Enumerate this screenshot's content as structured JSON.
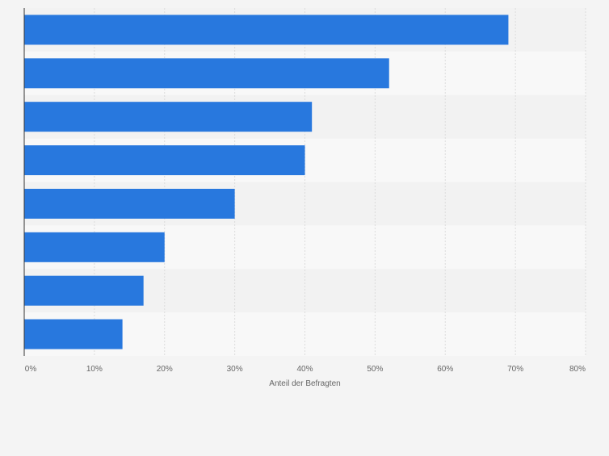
{
  "chart_data": {
    "type": "bar",
    "orientation": "horizontal",
    "categories": [
      "",
      "",
      "",
      "",
      "",
      "",
      "",
      ""
    ],
    "values": [
      69,
      52,
      41,
      40,
      30,
      20,
      17,
      14
    ],
    "xlabel": "Anteil der Befragten",
    "xlim": [
      0,
      80
    ],
    "xticks": [
      0,
      10,
      20,
      30,
      40,
      50,
      60,
      70,
      80
    ],
    "xtick_labels": [
      "0%",
      "10%",
      "20%",
      "30%",
      "40%",
      "50%",
      "60%",
      "70%",
      "80%"
    ],
    "grid": true,
    "bar_color": "#2878de",
    "band_colors": [
      "#f2f2f2",
      "#f8f8f8"
    ],
    "background": "#f4f4f4"
  }
}
